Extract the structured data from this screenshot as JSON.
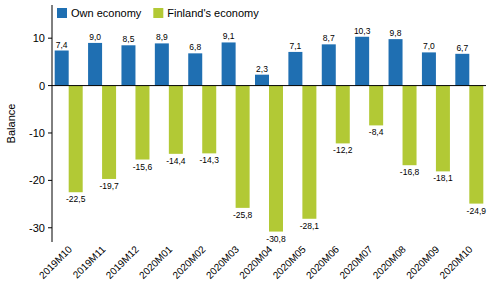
{
  "chart_data": {
    "type": "bar",
    "y_label": "Balance",
    "categories": [
      "2019M10",
      "2019M11",
      "2019M12",
      "2020M01",
      "2020M02",
      "2020M03",
      "2020M04",
      "2020M05",
      "2020M06",
      "2020M07",
      "2020M08",
      "2020M09",
      "2020M10"
    ],
    "series": [
      {
        "name": "Own economy",
        "color": "#1f6fb2",
        "values": [
          7.4,
          9.0,
          8.5,
          8.9,
          6.8,
          9.1,
          2.3,
          7.1,
          8.7,
          10.3,
          9.8,
          7.0,
          6.7
        ],
        "value_labels": [
          "7,4",
          "9,0",
          "8,5",
          "8,9",
          "6,8",
          "9,1",
          "2,3",
          "7,1",
          "8,7",
          "10,3",
          "9,8",
          "7,0",
          "6,7"
        ]
      },
      {
        "name": "Finland's economy",
        "color": "#b2c935",
        "values": [
          -22.5,
          -19.7,
          -15.6,
          -14.4,
          -14.3,
          -25.8,
          -30.8,
          -28.1,
          -12.2,
          -8.4,
          -16.8,
          -18.1,
          -24.9
        ],
        "value_labels": [
          "-22,5",
          "-19,7",
          "-15,6",
          "-14,4",
          "-14,3",
          "-25,8",
          "-30,8",
          "-28,1",
          "-12,2",
          "-8,4",
          "-16,8",
          "-18,1",
          "-24,9"
        ]
      }
    ],
    "ylim": [
      -33,
      17
    ],
    "yticks": [
      -30,
      -20,
      -10,
      0,
      10
    ],
    "grid": false,
    "legend": "top-left",
    "data_labels": true
  }
}
